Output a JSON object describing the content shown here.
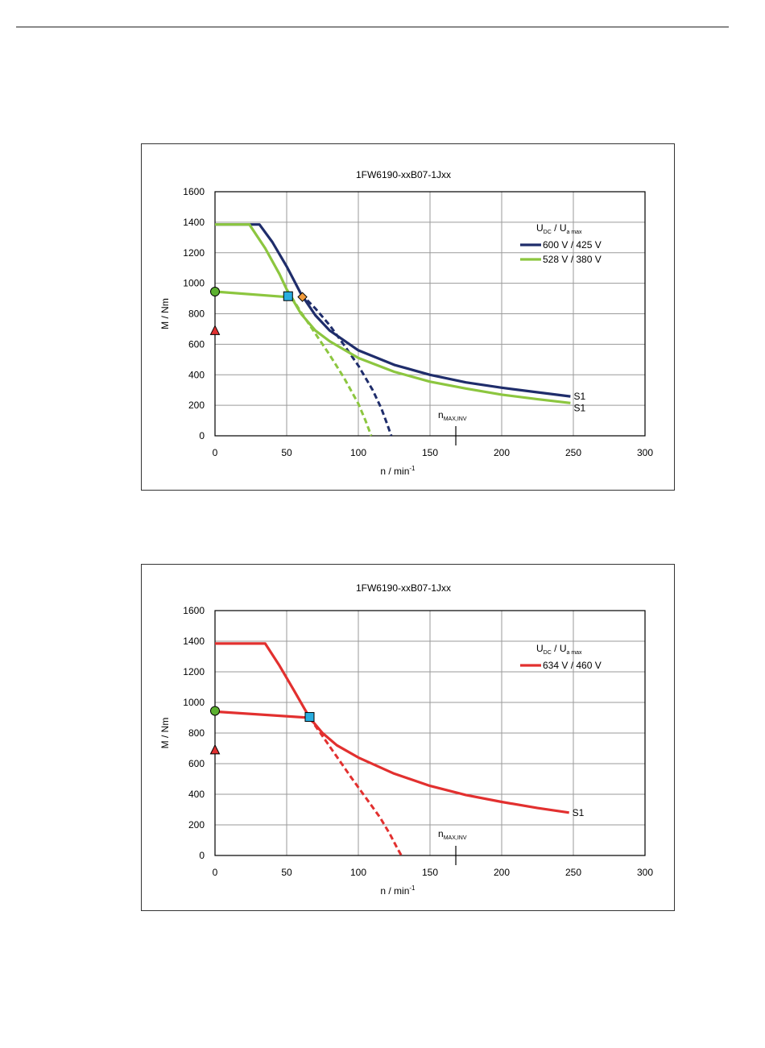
{
  "chart_data": [
    {
      "type": "line",
      "title": "1FW6190-xxB07-1Jxx",
      "xlabel": "n / min",
      "xlabel_sup": "-1",
      "ylabel": "M / Nm",
      "xlim": [
        0,
        300
      ],
      "ylim": [
        0,
        1600
      ],
      "xticks": [
        "0",
        "50",
        "100",
        "150",
        "200",
        "250",
        "300"
      ],
      "yticks": [
        "0",
        "200",
        "400",
        "600",
        "800",
        "1000",
        "1200",
        "1400",
        "1600"
      ],
      "grid": true,
      "legend_position": "top-right",
      "legend_title": {
        "main1": "U",
        "sub1": "DC",
        "sep": "/",
        "main2": "U",
        "sub2": "a max"
      },
      "series": [
        {
          "name": "600 V / 425 V",
          "color": "#1f2d6b",
          "points": [
            [
              0,
              1385
            ],
            [
              31,
              1385
            ],
            [
              40,
              1270
            ],
            [
              50,
              1110
            ],
            [
              55,
              1020
            ],
            [
              60,
              930
            ],
            [
              70,
              790
            ],
            [
              80,
              690
            ],
            [
              100,
              560
            ],
            [
              125,
              465
            ],
            [
              150,
              400
            ],
            [
              175,
              350
            ],
            [
              200,
              315
            ],
            [
              225,
              285
            ],
            [
              248,
              258
            ]
          ],
          "dashed": [
            [
              60,
              930
            ],
            [
              70,
              835
            ],
            [
              80,
              725
            ],
            [
              90,
              595
            ],
            [
              100,
              460
            ],
            [
              110,
              300
            ],
            [
              116,
              180
            ],
            [
              120,
              80
            ],
            [
              123,
              0
            ]
          ],
          "end_label": "S1"
        },
        {
          "name": "528 V / 380 V",
          "color": "#8cc63f",
          "points": [
            [
              0,
              1385
            ],
            [
              24,
              1385
            ],
            [
              35,
              1230
            ],
            [
              45,
              1060
            ],
            [
              50,
              960
            ],
            [
              55,
              880
            ],
            [
              60,
              800
            ],
            [
              70,
              690
            ],
            [
              80,
              620
            ],
            [
              100,
              510
            ],
            [
              125,
              420
            ],
            [
              150,
              355
            ],
            [
              175,
              310
            ],
            [
              200,
              270
            ],
            [
              225,
              240
            ],
            [
              248,
              215
            ]
          ],
          "dashed": [
            [
              50,
              960
            ],
            [
              60,
              810
            ],
            [
              70,
              670
            ],
            [
              80,
              530
            ],
            [
              90,
              380
            ],
            [
              100,
              210
            ],
            [
              105,
              100
            ],
            [
              109,
              0
            ]
          ],
          "end_label": "S1"
        },
        {
          "name": "",
          "color": "#8cc63f",
          "points": [
            [
              0,
              945
            ],
            [
              50,
              910
            ]
          ],
          "dashed": [],
          "end_label": ""
        }
      ],
      "markers": [
        {
          "shape": "circle",
          "x": 0,
          "y": 945,
          "fill": "#5cb030"
        },
        {
          "shape": "triangle",
          "x": 0,
          "y": 690,
          "fill": "#e03030"
        },
        {
          "shape": "square",
          "x": 51,
          "y": 915,
          "fill": "#29aee0"
        },
        {
          "shape": "diamond",
          "x": 61,
          "y": 910,
          "fill": "#f09a3c"
        }
      ],
      "annotation": {
        "text": "n",
        "sub": "MAX,INV",
        "x": 168
      }
    },
    {
      "type": "line",
      "title": "1FW6190-xxB07-1Jxx",
      "xlabel": "n / min",
      "xlabel_sup": "-1",
      "ylabel": "M / Nm",
      "xlim": [
        0,
        300
      ],
      "ylim": [
        0,
        1600
      ],
      "xticks": [
        "0",
        "50",
        "100",
        "150",
        "200",
        "250",
        "300"
      ],
      "yticks": [
        "0",
        "200",
        "400",
        "600",
        "800",
        "1000",
        "1200",
        "1400",
        "1600"
      ],
      "grid": true,
      "legend_position": "top-right",
      "legend_title": {
        "main1": "U",
        "sub1": "DC",
        "sep": "/",
        "main2": "U",
        "sub2": "a max"
      },
      "series": [
        {
          "name": "634 V / 460 V",
          "color": "#e2302f",
          "points": [
            [
              0,
              1385
            ],
            [
              35,
              1385
            ],
            [
              45,
              1240
            ],
            [
              55,
              1080
            ],
            [
              66,
              900
            ],
            [
              75,
              800
            ],
            [
              85,
              720
            ],
            [
              100,
              640
            ],
            [
              125,
              535
            ],
            [
              150,
              455
            ],
            [
              175,
              395
            ],
            [
              200,
              350
            ],
            [
              225,
              310
            ],
            [
              247,
              280
            ]
          ],
          "dashed": [
            [
              66,
              900
            ],
            [
              75,
              780
            ],
            [
              85,
              645
            ],
            [
              95,
              510
            ],
            [
              105,
              380
            ],
            [
              115,
              250
            ],
            [
              122,
              140
            ],
            [
              127,
              50
            ],
            [
              130,
              0
            ]
          ],
          "end_label": "S1"
        },
        {
          "name": "",
          "color": "#e2302f",
          "points": [
            [
              0,
              940
            ],
            [
              66,
              900
            ]
          ],
          "dashed": [],
          "end_label": ""
        }
      ],
      "markers": [
        {
          "shape": "circle",
          "x": 0,
          "y": 945,
          "fill": "#5cb030"
        },
        {
          "shape": "triangle",
          "x": 0,
          "y": 690,
          "fill": "#e03030"
        },
        {
          "shape": "square",
          "x": 66,
          "y": 905,
          "fill": "#29aee0"
        }
      ],
      "annotation": {
        "text": "n",
        "sub": "MAX,INV",
        "x": 168
      }
    }
  ]
}
